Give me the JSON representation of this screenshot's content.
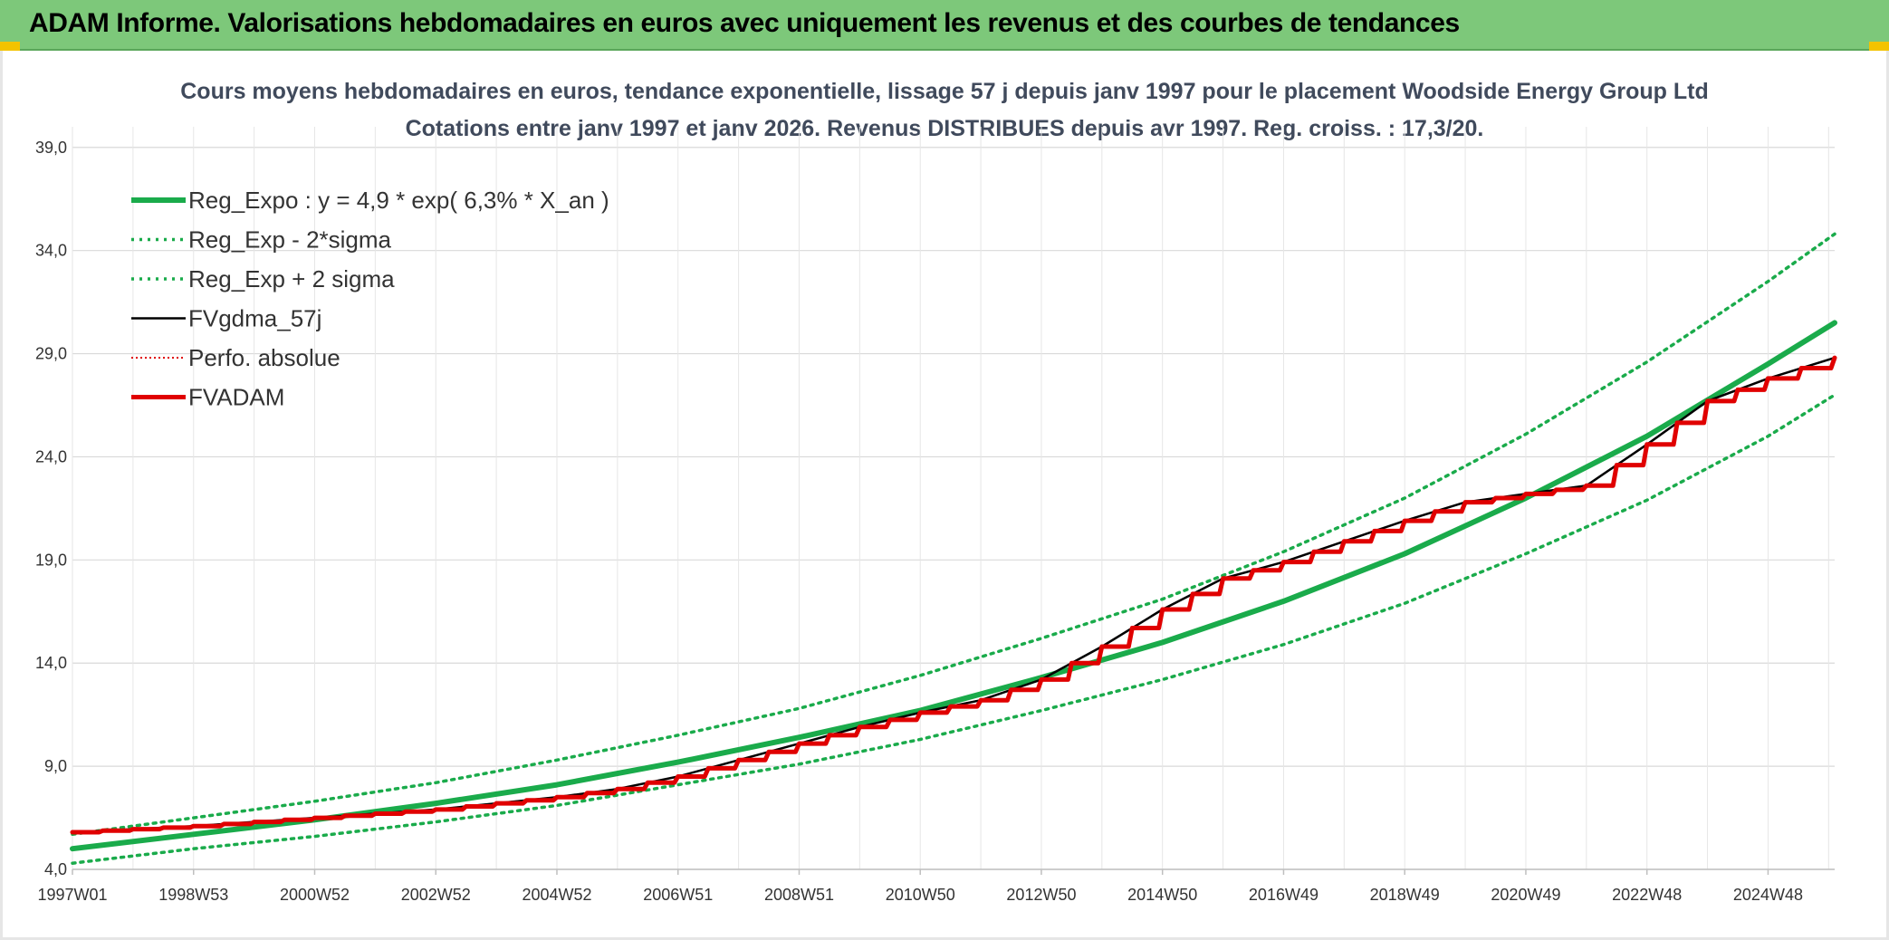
{
  "banner": {
    "title": "ADAM Informe. Valorisations hebdomadaires en euros avec uniquement les revenus et des courbes de tendances"
  },
  "colors": {
    "banner_bg": "#7dc87a",
    "regression": "#1aab4b",
    "band": "#1aab4b",
    "fvgdma": "#000000",
    "perfo": "#e00000",
    "fvadam": "#e00000",
    "accent_corner": "#f3c300"
  },
  "chart_data": {
    "type": "line",
    "title_lines": [
      "Cours moyens hebdomadaires en euros, tendance exponentielle, lissage 57 j depuis janv 1997 pour le placement Woodside Energy Group Ltd",
      "Cotations entre janv 1997 et janv 2026. Revenus DISTRIBUES depuis avr 1997. Reg. croiss. : 17,3/20."
    ],
    "xlabel": "",
    "ylabel": "",
    "x_range_years": [
      1997.0,
      2026.1
    ],
    "ylim": [
      4.0,
      40.0
    ],
    "y_ticks": [
      "4,0",
      "9,0",
      "14,0",
      "19,0",
      "24,0",
      "29,0",
      "34,0",
      "39,0"
    ],
    "y_tick_values": [
      4,
      9,
      14,
      19,
      24,
      29,
      34,
      39
    ],
    "x_ticks": [
      {
        "label": "1997W01",
        "year": 1997.0
      },
      {
        "label": "1998W53",
        "year": 1999.0
      },
      {
        "label": "2000W52",
        "year": 2001.0
      },
      {
        "label": "2002W52",
        "year": 2003.0
      },
      {
        "label": "2004W52",
        "year": 2005.0
      },
      {
        "label": "2006W51",
        "year": 2007.0
      },
      {
        "label": "2008W51",
        "year": 2009.0
      },
      {
        "label": "2010W50",
        "year": 2011.0
      },
      {
        "label": "2012W50",
        "year": 2013.0
      },
      {
        "label": "2014W50",
        "year": 2015.0
      },
      {
        "label": "2016W49",
        "year": 2017.0
      },
      {
        "label": "2018W49",
        "year": 2019.0
      },
      {
        "label": "2020W49",
        "year": 2021.0
      },
      {
        "label": "2022W48",
        "year": 2023.0
      },
      {
        "label": "2024W48",
        "year": 2025.0
      }
    ],
    "grid": true,
    "legend_position": "top-left",
    "series": [
      {
        "name": "Reg_Expo : y = 4,9 * exp( 6,3% *  X_an )",
        "style": "solid-thick",
        "color": "#1aab4b",
        "x": [
          1997,
          1999,
          2001,
          2003,
          2005,
          2007,
          2009,
          2011,
          2013,
          2015,
          2017,
          2019,
          2021,
          2023,
          2025,
          2026.1
        ],
        "y": [
          5.0,
          5.7,
          6.4,
          7.2,
          8.1,
          9.2,
          10.4,
          11.7,
          13.3,
          15.0,
          17.0,
          19.3,
          22.0,
          25.0,
          28.5,
          30.5
        ]
      },
      {
        "name": "Reg_Exp - 2*sigma",
        "style": "dotted",
        "color": "#1aab4b",
        "x": [
          1997,
          1999,
          2001,
          2003,
          2005,
          2007,
          2009,
          2011,
          2013,
          2015,
          2017,
          2019,
          2021,
          2023,
          2025,
          2026.1
        ],
        "y": [
          4.3,
          5.0,
          5.6,
          6.3,
          7.1,
          8.1,
          9.1,
          10.3,
          11.7,
          13.2,
          14.9,
          16.9,
          19.3,
          21.9,
          25.0,
          27.0
        ]
      },
      {
        "name": "Reg_Exp + 2 sigma",
        "style": "dotted",
        "color": "#1aab4b",
        "x": [
          1997,
          1999,
          2001,
          2003,
          2005,
          2007,
          2009,
          2011,
          2013,
          2015,
          2017,
          2019,
          2021,
          2023,
          2025,
          2026.1
        ],
        "y": [
          5.7,
          6.5,
          7.3,
          8.2,
          9.3,
          10.5,
          11.8,
          13.4,
          15.2,
          17.1,
          19.4,
          22.0,
          25.1,
          28.6,
          32.5,
          34.8
        ]
      },
      {
        "name": "FVgdma_57j",
        "style": "solid-thin",
        "color": "#000000",
        "x": [
          1997.0,
          1998.0,
          1999.0,
          2000.0,
          2001.0,
          2002.0,
          2003.0,
          2004.0,
          2005.0,
          2006.0,
          2007.0,
          2008.0,
          2009.0,
          2010.0,
          2011.0,
          2012.0,
          2013.0,
          2014.0,
          2015.0,
          2016.0,
          2017.0,
          2018.0,
          2019.0,
          2020.0,
          2021.0,
          2022.0,
          2023.0,
          2024.0,
          2025.0,
          2026.1
        ],
        "y": [
          5.8,
          5.95,
          6.1,
          6.3,
          6.5,
          6.7,
          6.9,
          7.2,
          7.5,
          7.9,
          8.5,
          9.3,
          10.1,
          10.9,
          11.6,
          12.2,
          13.2,
          14.8,
          16.6,
          18.1,
          18.9,
          19.9,
          20.9,
          21.8,
          22.2,
          22.6,
          24.6,
          26.7,
          27.8,
          28.8
        ]
      },
      {
        "name": "Perfo. absolue",
        "style": "dotted-thin",
        "color": "#e00000",
        "x": [
          1997.0,
          1998.0,
          1999.0,
          2000.0,
          2001.0,
          2002.0,
          2003.0,
          2004.0,
          2005.0,
          2006.0,
          2007.0,
          2008.0,
          2009.0,
          2010.0,
          2011.0,
          2012.0,
          2013.0,
          2014.0,
          2015.0,
          2016.0,
          2017.0,
          2018.0,
          2019.0,
          2020.0,
          2021.0,
          2022.0,
          2023.0,
          2024.0,
          2025.0,
          2026.1
        ],
        "y": [
          5.8,
          5.95,
          6.1,
          6.3,
          6.5,
          6.7,
          6.9,
          7.2,
          7.5,
          7.9,
          8.5,
          9.3,
          10.1,
          10.9,
          11.6,
          12.2,
          13.2,
          14.8,
          16.6,
          18.1,
          18.9,
          19.9,
          20.9,
          21.8,
          22.2,
          22.6,
          24.6,
          26.7,
          27.8,
          28.8
        ]
      },
      {
        "name": "FVADAM",
        "style": "step-thick",
        "color": "#e00000",
        "x": [
          1997.0,
          1998.0,
          1999.0,
          2000.0,
          2001.0,
          2002.0,
          2003.0,
          2004.0,
          2005.0,
          2006.0,
          2007.0,
          2008.0,
          2009.0,
          2010.0,
          2011.0,
          2012.0,
          2013.0,
          2014.0,
          2015.0,
          2016.0,
          2017.0,
          2018.0,
          2019.0,
          2020.0,
          2021.0,
          2022.0,
          2023.0,
          2024.0,
          2025.0,
          2026.1
        ],
        "y": [
          5.8,
          5.95,
          6.1,
          6.3,
          6.5,
          6.7,
          6.9,
          7.2,
          7.5,
          7.9,
          8.5,
          9.3,
          10.1,
          10.9,
          11.6,
          12.2,
          13.2,
          14.8,
          16.6,
          18.1,
          18.9,
          19.9,
          20.9,
          21.8,
          22.2,
          22.6,
          24.6,
          26.7,
          27.8,
          28.8
        ]
      }
    ]
  }
}
